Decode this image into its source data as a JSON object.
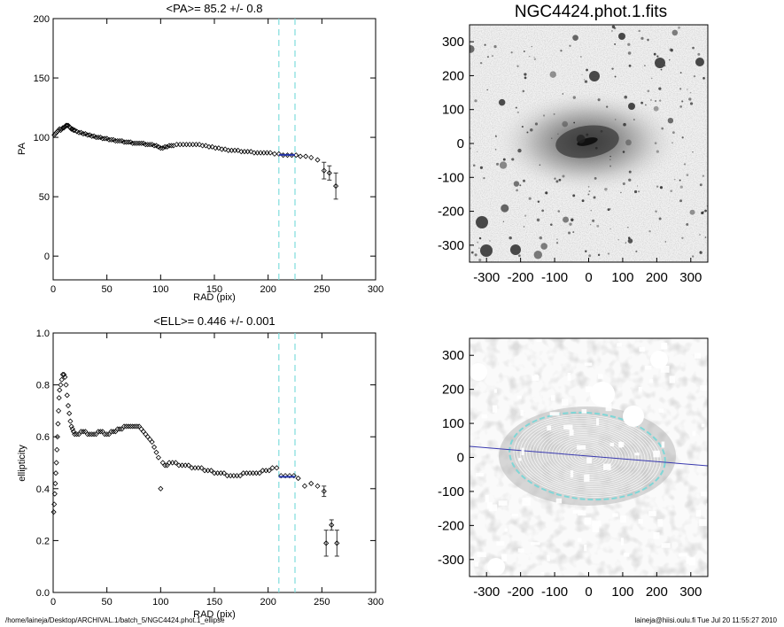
{
  "chart_data": [
    {
      "type": "scatter",
      "title": "<PA>=  85.2 +/-   0.8",
      "xlabel": "RAD (pix)",
      "ylabel": "PA",
      "xlim": [
        0,
        300
      ],
      "ylim": [
        -20,
        200
      ],
      "xticks": [
        0,
        50,
        100,
        150,
        200,
        250,
        300
      ],
      "yticks": [
        0,
        50,
        100,
        150,
        200
      ],
      "vlines": [
        210,
        225
      ],
      "points": [
        [
          1,
          102
        ],
        [
          2,
          103
        ],
        [
          3,
          104
        ],
        [
          4,
          105
        ],
        [
          5,
          106
        ],
        [
          6,
          107
        ],
        [
          7,
          106
        ],
        [
          8,
          107
        ],
        [
          9,
          108
        ],
        [
          10,
          108
        ],
        [
          11,
          109
        ],
        [
          12,
          110
        ],
        [
          13,
          110
        ],
        [
          14,
          110
        ],
        [
          15,
          109
        ],
        [
          16,
          108
        ],
        [
          17,
          107
        ],
        [
          18,
          107
        ],
        [
          19,
          106
        ],
        [
          20,
          106
        ],
        [
          22,
          105
        ],
        [
          24,
          104
        ],
        [
          26,
          104
        ],
        [
          28,
          103
        ],
        [
          30,
          103
        ],
        [
          32,
          102
        ],
        [
          34,
          102
        ],
        [
          36,
          101
        ],
        [
          38,
          101
        ],
        [
          40,
          100
        ],
        [
          42,
          100
        ],
        [
          44,
          100
        ],
        [
          46,
          99
        ],
        [
          48,
          99
        ],
        [
          50,
          99
        ],
        [
          52,
          98
        ],
        [
          54,
          98
        ],
        [
          56,
          98
        ],
        [
          58,
          97
        ],
        [
          60,
          97
        ],
        [
          62,
          97
        ],
        [
          64,
          97
        ],
        [
          66,
          96
        ],
        [
          68,
          96
        ],
        [
          70,
          96
        ],
        [
          72,
          96
        ],
        [
          74,
          95
        ],
        [
          76,
          95
        ],
        [
          78,
          95
        ],
        [
          80,
          95
        ],
        [
          82,
          95
        ],
        [
          84,
          95
        ],
        [
          86,
          94
        ],
        [
          88,
          94
        ],
        [
          90,
          94
        ],
        [
          92,
          94
        ],
        [
          94,
          93
        ],
        [
          96,
          93
        ],
        [
          98,
          92
        ],
        [
          100,
          91
        ],
        [
          102,
          91
        ],
        [
          104,
          92
        ],
        [
          106,
          92
        ],
        [
          108,
          93
        ],
        [
          110,
          93
        ],
        [
          112,
          93
        ],
        [
          115,
          94
        ],
        [
          118,
          94
        ],
        [
          121,
          94
        ],
        [
          124,
          94
        ],
        [
          127,
          94
        ],
        [
          130,
          94
        ],
        [
          133,
          94
        ],
        [
          136,
          94
        ],
        [
          139,
          93
        ],
        [
          142,
          93
        ],
        [
          145,
          92
        ],
        [
          148,
          92
        ],
        [
          151,
          91
        ],
        [
          154,
          91
        ],
        [
          157,
          90
        ],
        [
          160,
          90
        ],
        [
          163,
          89
        ],
        [
          166,
          89
        ],
        [
          169,
          89
        ],
        [
          172,
          89
        ],
        [
          175,
          88
        ],
        [
          178,
          88
        ],
        [
          181,
          88
        ],
        [
          184,
          88
        ],
        [
          187,
          87
        ],
        [
          190,
          87
        ],
        [
          193,
          87
        ],
        [
          196,
          87
        ],
        [
          199,
          87
        ],
        [
          202,
          87
        ],
        [
          206,
          86
        ],
        [
          210,
          86
        ],
        [
          214,
          85
        ],
        [
          218,
          85
        ],
        [
          222,
          85
        ],
        [
          226,
          85
        ],
        [
          230,
          84
        ],
        [
          235,
          84
        ],
        [
          240,
          83
        ],
        [
          246,
          81
        ],
        [
          252,
          72
        ],
        [
          257,
          70
        ],
        [
          263,
          59
        ]
      ],
      "error_bars": [
        [
          252,
          72,
          7
        ],
        [
          257,
          70,
          6
        ],
        [
          263,
          59,
          11
        ]
      ],
      "fit_segment": {
        "x": [
          210,
          225
        ],
        "y": [
          85.2,
          85.2
        ]
      }
    },
    {
      "type": "scatter",
      "title": "<ELL>= 0.446 +/-   0.001",
      "xlabel": "RAD (pix)",
      "ylabel": "ellipticity",
      "xlim": [
        0,
        300
      ],
      "ylim": [
        0.0,
        1.0
      ],
      "xticks": [
        0,
        50,
        100,
        150,
        200,
        250,
        300
      ],
      "yticks": [
        0.0,
        0.2,
        0.4,
        0.6,
        0.8,
        1.0
      ],
      "vlines": [
        210,
        225
      ],
      "points": [
        [
          0.5,
          0.31
        ],
        [
          1,
          0.34
        ],
        [
          1.5,
          0.38
        ],
        [
          2,
          0.42
        ],
        [
          2.5,
          0.46
        ],
        [
          3,
          0.5
        ],
        [
          3.5,
          0.55
        ],
        [
          4,
          0.6
        ],
        [
          4.5,
          0.65
        ],
        [
          5,
          0.7
        ],
        [
          5.5,
          0.75
        ],
        [
          6,
          0.78
        ],
        [
          7,
          0.8
        ],
        [
          8,
          0.82
        ],
        [
          9,
          0.84
        ],
        [
          10,
          0.84
        ],
        [
          11,
          0.83
        ],
        [
          12,
          0.8
        ],
        [
          13,
          0.76
        ],
        [
          14,
          0.72
        ],
        [
          15,
          0.69
        ],
        [
          16,
          0.66
        ],
        [
          17,
          0.64
        ],
        [
          18,
          0.63
        ],
        [
          19,
          0.62
        ],
        [
          20,
          0.61
        ],
        [
          22,
          0.61
        ],
        [
          24,
          0.61
        ],
        [
          26,
          0.62
        ],
        [
          28,
          0.62
        ],
        [
          30,
          0.62
        ],
        [
          32,
          0.61
        ],
        [
          34,
          0.61
        ],
        [
          36,
          0.61
        ],
        [
          38,
          0.61
        ],
        [
          40,
          0.61
        ],
        [
          42,
          0.62
        ],
        [
          44,
          0.62
        ],
        [
          46,
          0.62
        ],
        [
          48,
          0.61
        ],
        [
          50,
          0.61
        ],
        [
          52,
          0.61
        ],
        [
          54,
          0.62
        ],
        [
          56,
          0.62
        ],
        [
          58,
          0.62
        ],
        [
          60,
          0.63
        ],
        [
          62,
          0.63
        ],
        [
          64,
          0.63
        ],
        [
          66,
          0.64
        ],
        [
          68,
          0.64
        ],
        [
          70,
          0.64
        ],
        [
          72,
          0.64
        ],
        [
          74,
          0.64
        ],
        [
          76,
          0.64
        ],
        [
          78,
          0.64
        ],
        [
          80,
          0.64
        ],
        [
          82,
          0.63
        ],
        [
          84,
          0.62
        ],
        [
          86,
          0.61
        ],
        [
          88,
          0.6
        ],
        [
          90,
          0.59
        ],
        [
          92,
          0.58
        ],
        [
          94,
          0.56
        ],
        [
          96,
          0.54
        ],
        [
          98,
          0.52
        ],
        [
          100,
          0.4
        ],
        [
          102,
          0.5
        ],
        [
          104,
          0.49
        ],
        [
          106,
          0.49
        ],
        [
          108,
          0.5
        ],
        [
          111,
          0.5
        ],
        [
          114,
          0.5
        ],
        [
          117,
          0.49
        ],
        [
          120,
          0.49
        ],
        [
          123,
          0.49
        ],
        [
          126,
          0.49
        ],
        [
          129,
          0.48
        ],
        [
          132,
          0.48
        ],
        [
          135,
          0.48
        ],
        [
          138,
          0.48
        ],
        [
          141,
          0.47
        ],
        [
          144,
          0.47
        ],
        [
          147,
          0.47
        ],
        [
          150,
          0.46
        ],
        [
          153,
          0.46
        ],
        [
          156,
          0.46
        ],
        [
          159,
          0.46
        ],
        [
          162,
          0.45
        ],
        [
          165,
          0.45
        ],
        [
          168,
          0.45
        ],
        [
          171,
          0.45
        ],
        [
          174,
          0.45
        ],
        [
          177,
          0.46
        ],
        [
          180,
          0.46
        ],
        [
          183,
          0.46
        ],
        [
          186,
          0.46
        ],
        [
          189,
          0.46
        ],
        [
          192,
          0.46
        ],
        [
          195,
          0.47
        ],
        [
          198,
          0.47
        ],
        [
          201,
          0.47
        ],
        [
          204,
          0.48
        ],
        [
          208,
          0.48
        ],
        [
          212,
          0.45
        ],
        [
          216,
          0.45
        ],
        [
          220,
          0.45
        ],
        [
          224,
          0.45
        ],
        [
          228,
          0.44
        ],
        [
          234,
          0.41
        ],
        [
          240,
          0.42
        ],
        [
          246,
          0.41
        ],
        [
          252,
          0.39
        ],
        [
          254,
          0.19
        ],
        [
          259,
          0.26
        ],
        [
          264,
          0.19
        ]
      ],
      "error_bars": [
        [
          252,
          0.39,
          0.02
        ],
        [
          254,
          0.19,
          0.05
        ],
        [
          259,
          0.26,
          0.02
        ],
        [
          264,
          0.19,
          0.05
        ]
      ],
      "fit_segment": {
        "x": [
          210,
          225
        ],
        "y": [
          0.446,
          0.446
        ]
      }
    },
    {
      "type": "heatmap",
      "title": "NGC4424.phot.1.fits",
      "xlim": [
        -350,
        350
      ],
      "ylim": [
        -350,
        350
      ],
      "xticks": [
        -300,
        -200,
        -100,
        0,
        100,
        200,
        300
      ],
      "yticks": [
        -300,
        -200,
        -100,
        0,
        100,
        200,
        300
      ],
      "colormap": "inverted grayscale"
    },
    {
      "type": "heatmap",
      "title": "",
      "xlim": [
        -350,
        350
      ],
      "ylim": [
        -350,
        350
      ],
      "xticks": [
        -300,
        -200,
        -100,
        0,
        100,
        200,
        300
      ],
      "yticks": [
        -300,
        -200,
        -100,
        0,
        100,
        200,
        300
      ],
      "overlays": {
        "ellipse_color": "#7fd6d6",
        "line_color": "#3a3ab0",
        "pa_deg": 85.2,
        "ellipticity": 0.446
      }
    }
  ],
  "footer": {
    "left": "/home/laineja/Desktop/ARCHIVAL.1/batch_5/NGC4424.phot.1_ellipse",
    "right": "laineja@hiisi.oulu.fi  Tue Jul 20 11:55:27 2010"
  },
  "colors": {
    "dash": "#7fdcdc",
    "fit": "#2233aa",
    "marker": "#000000"
  }
}
